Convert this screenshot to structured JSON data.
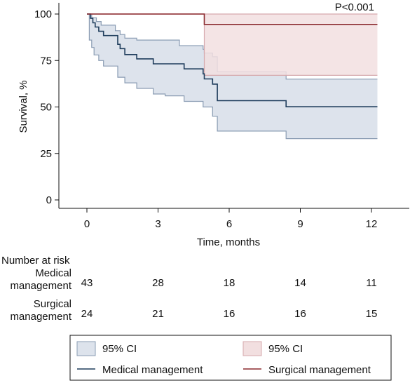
{
  "chart_data": {
    "type": "line",
    "subtype": "kaplan-meier survival curve with 95% CI bands",
    "xlabel": "Time, months",
    "ylabel": "Survival, %",
    "xlim": [
      0,
      12.3
    ],
    "ylim": [
      0,
      100
    ],
    "x_ticks": [
      0,
      3,
      6,
      9,
      12
    ],
    "y_ticks": [
      0,
      25,
      50,
      75,
      100
    ],
    "annotation": "P<0.001",
    "grid": false,
    "series": [
      {
        "name": "Medical management",
        "color": "#1f3d5c",
        "ci_fill": "#dde3ec",
        "ci_stroke": "#8a9cb3",
        "steps": [
          [
            0,
            100
          ],
          [
            0.15,
            97.7
          ],
          [
            0.25,
            95.3
          ],
          [
            0.35,
            93
          ],
          [
            0.5,
            90.7
          ],
          [
            0.7,
            88.4
          ],
          [
            1.3,
            83.7
          ],
          [
            1.4,
            81.4
          ],
          [
            1.6,
            78.2
          ],
          [
            2.1,
            75.9
          ],
          [
            2.8,
            73.2
          ],
          [
            3.3,
            73.2
          ],
          [
            4.1,
            70.5
          ],
          [
            4.9,
            67.8
          ],
          [
            4.95,
            65.1
          ],
          [
            5.3,
            62.3
          ],
          [
            5.5,
            53.4
          ],
          [
            8.4,
            50.1
          ],
          [
            12.25,
            50.1
          ]
        ],
        "ci_upper": [
          [
            0,
            100
          ],
          [
            0.1,
            100
          ],
          [
            0.2,
            98
          ],
          [
            0.4,
            96
          ],
          [
            0.6,
            94
          ],
          [
            1.2,
            91
          ],
          [
            1.4,
            89
          ],
          [
            1.6,
            87
          ],
          [
            2.1,
            86
          ],
          [
            3.3,
            86
          ],
          [
            3.9,
            83
          ],
          [
            4.9,
            81
          ],
          [
            4.95,
            79
          ],
          [
            5.3,
            77
          ],
          [
            5.5,
            69
          ],
          [
            8.4,
            65
          ],
          [
            12.25,
            65
          ]
        ],
        "ci_lower": [
          [
            0,
            100
          ],
          [
            0.1,
            86
          ],
          [
            0.2,
            82
          ],
          [
            0.3,
            78
          ],
          [
            0.5,
            75
          ],
          [
            0.7,
            72
          ],
          [
            1.3,
            66
          ],
          [
            1.6,
            63
          ],
          [
            2.1,
            60
          ],
          [
            2.8,
            57
          ],
          [
            3.3,
            56
          ],
          [
            4.1,
            53
          ],
          [
            4.9,
            50
          ],
          [
            5.3,
            45
          ],
          [
            5.5,
            37
          ],
          [
            8.4,
            33
          ],
          [
            12.25,
            33
          ]
        ]
      },
      {
        "name": "Surgical management",
        "color": "#8b2a2f",
        "ci_fill": "#f2dfe0",
        "ci_stroke": "#d6a9ad",
        "steps": [
          [
            0,
            100
          ],
          [
            4.95,
            100
          ],
          [
            4.95,
            94.4
          ],
          [
            12.25,
            94.4
          ]
        ],
        "ci_upper": [
          [
            0,
            100
          ],
          [
            4.95,
            100
          ],
          [
            12.25,
            100
          ]
        ],
        "ci_lower": [
          [
            0,
            100
          ],
          [
            4.95,
            100
          ],
          [
            4.95,
            67
          ],
          [
            12.25,
            67
          ]
        ]
      }
    ],
    "risk_table": {
      "title": "Number at risk",
      "rows": [
        {
          "label_lines": [
            "Medical",
            "management"
          ],
          "values": [
            43,
            28,
            18,
            14,
            11
          ]
        },
        {
          "label_lines": [
            "Surgical",
            "management"
          ],
          "values": [
            24,
            21,
            16,
            16,
            15
          ]
        }
      ]
    },
    "legend": {
      "placement": "bottom",
      "items": [
        {
          "label": "95% CI",
          "kind": "fill",
          "series": 0
        },
        {
          "label": "95% CI",
          "kind": "fill",
          "series": 1
        },
        {
          "label": "Medical management",
          "kind": "line",
          "series": 0
        },
        {
          "label": "Surgical management",
          "kind": "line",
          "series": 1
        }
      ]
    }
  }
}
